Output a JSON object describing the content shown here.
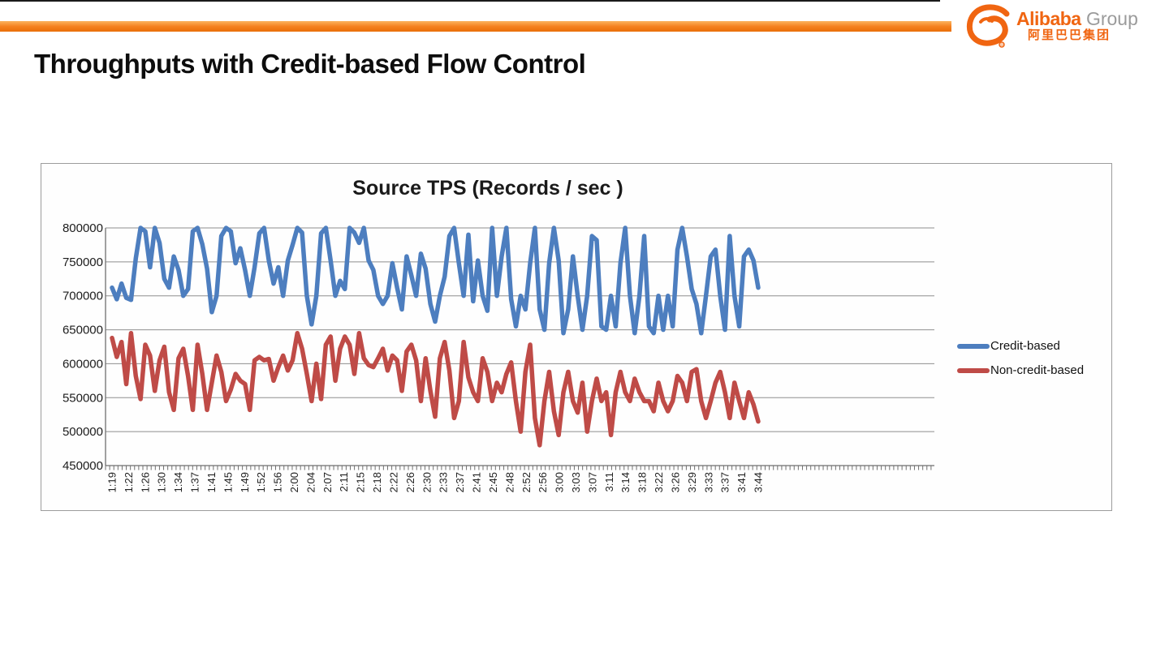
{
  "slide": {
    "title": "Throughputs with Credit-based Flow Control"
  },
  "logo": {
    "brand": "Alibaba",
    "suffix": "Group",
    "chinese": "阿里巴巴集团",
    "orange": "#f06511",
    "gray": "#9b9b9b"
  },
  "accent_color": "#f58220",
  "chart_data": {
    "type": "line",
    "title": "Source TPS (Records / sec )",
    "xlabel": "",
    "ylabel": "",
    "ylim": [
      450000,
      800000
    ],
    "grid": true,
    "legend_position": "right",
    "y_ticks": [
      "800000",
      "750000",
      "700000",
      "650000",
      "600000",
      "550000",
      "500000",
      "450000"
    ],
    "x_labels": [
      "1:19",
      "1:22",
      "1:26",
      "1:30",
      "1:34",
      "1:37",
      "1:41",
      "1:45",
      "1:49",
      "1:52",
      "1:56",
      "2:00",
      "2:04",
      "2:07",
      "2:11",
      "2:15",
      "2:18",
      "2:22",
      "2:26",
      "2:30",
      "2:33",
      "2:37",
      "2:41",
      "2:45",
      "2:48",
      "2:52",
      "2:56",
      "3:00",
      "3:03",
      "3:07",
      "3:11",
      "3:14",
      "3:18",
      "3:22",
      "3:26",
      "3:29",
      "3:33",
      "3:37",
      "3:41",
      "3:44"
    ],
    "series": [
      {
        "name": "Credit-based",
        "color": "#4d7ebf",
        "values": [
          712000,
          695000,
          718000,
          697000,
          694000,
          755000,
          800000,
          795000,
          742000,
          800000,
          778000,
          725000,
          712000,
          758000,
          738000,
          700000,
          710000,
          795000,
          800000,
          776000,
          740000,
          676000,
          700000,
          788000,
          800000,
          795000,
          748000,
          770000,
          738000,
          700000,
          742000,
          792000,
          800000,
          752000,
          718000,
          742000,
          700000,
          752000,
          775000,
          800000,
          793000,
          700000,
          658000,
          700000,
          792000,
          800000,
          752000,
          700000,
          722000,
          710000,
          800000,
          793000,
          778000,
          800000,
          752000,
          738000,
          700000,
          688000,
          700000,
          748000,
          712000,
          680000,
          758000,
          730000,
          700000,
          762000,
          740000,
          688000,
          662000,
          700000,
          728000,
          788000,
          800000,
          748000,
          700000,
          790000,
          692000,
          752000,
          700000,
          678000,
          800000,
          700000,
          758000,
          800000,
          695000,
          655000,
          700000,
          680000,
          748000,
          800000,
          680000,
          650000,
          748000,
          800000,
          752000,
          645000,
          680000,
          758000,
          700000,
          650000,
          700000,
          788000,
          782000,
          655000,
          650000,
          700000,
          655000,
          748000,
          800000,
          700000,
          645000,
          700000,
          788000,
          655000,
          645000,
          700000,
          650000,
          700000,
          655000,
          768000,
          800000,
          758000,
          710000,
          688000,
          645000,
          700000,
          758000,
          768000,
          700000,
          650000,
          788000,
          700000,
          655000,
          758000,
          768000,
          752000,
          712000
        ]
      },
      {
        "name": "Non-credit-based",
        "color": "#bf4b47",
        "values": [
          638000,
          610000,
          632000,
          570000,
          645000,
          582000,
          548000,
          628000,
          612000,
          560000,
          605000,
          625000,
          558000,
          532000,
          608000,
          622000,
          582000,
          532000,
          628000,
          585000,
          532000,
          572000,
          612000,
          588000,
          545000,
          562000,
          585000,
          575000,
          570000,
          532000,
          605000,
          610000,
          605000,
          607000,
          575000,
          595000,
          612000,
          590000,
          605000,
          645000,
          622000,
          585000,
          545000,
          600000,
          548000,
          628000,
          640000,
          575000,
          622000,
          640000,
          628000,
          585000,
          645000,
          608000,
          598000,
          595000,
          608000,
          622000,
          590000,
          612000,
          605000,
          560000,
          618000,
          628000,
          605000,
          545000,
          608000,
          560000,
          522000,
          608000,
          632000,
          590000,
          520000,
          545000,
          632000,
          580000,
          558000,
          545000,
          608000,
          588000,
          545000,
          572000,
          558000,
          585000,
          602000,
          545000,
          500000,
          588000,
          628000,
          520000,
          480000,
          545000,
          588000,
          530000,
          495000,
          558000,
          588000,
          545000,
          528000,
          572000,
          500000,
          545000,
          578000,
          545000,
          558000,
          495000,
          558000,
          588000,
          558000,
          545000,
          578000,
          558000,
          545000,
          545000,
          530000,
          572000,
          545000,
          530000,
          545000,
          582000,
          572000,
          545000,
          588000,
          592000,
          545000,
          520000,
          545000,
          572000,
          588000,
          558000,
          520000,
          572000,
          545000,
          520000,
          558000,
          540000,
          515000
        ]
      }
    ]
  }
}
